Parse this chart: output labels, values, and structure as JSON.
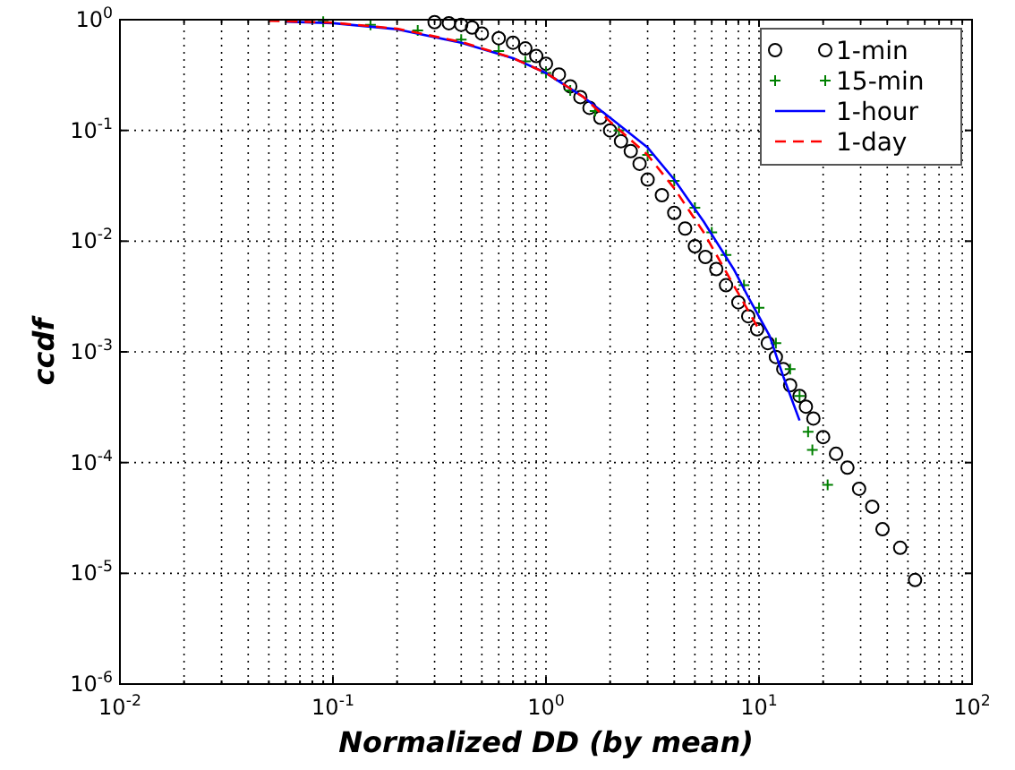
{
  "chart_data": {
    "type": "scatter",
    "xlabel": "Normalized DD (by mean)",
    "ylabel": "ccdf",
    "log": "xy",
    "grid": true,
    "legend": "top right",
    "xlim": [
      0.01,
      100
    ],
    "ylim": [
      1e-06,
      1
    ],
    "xticks": [
      {
        "value": 0.01,
        "label": "10$^{-2}$"
      },
      {
        "value": 0.02,
        "label": null
      },
      {
        "value": 0.03,
        "label": null
      },
      {
        "value": 0.04,
        "label": null
      },
      {
        "value": 0.05,
        "label": null
      },
      {
        "value": 0.06,
        "label": null
      },
      {
        "value": 0.07,
        "label": null
      },
      {
        "value": 0.08,
        "label": null
      },
      {
        "value": 0.09,
        "label": null
      },
      {
        "value": 0.1,
        "label": "10$^{-1}$"
      },
      {
        "value": 0.2,
        "label": null
      },
      {
        "value": 0.3,
        "label": null
      },
      {
        "value": 0.4,
        "label": null
      },
      {
        "value": 0.5,
        "label": null
      },
      {
        "value": 0.6,
        "label": null
      },
      {
        "value": 0.7,
        "label": null
      },
      {
        "value": 0.8,
        "label": null
      },
      {
        "value": 0.9,
        "label": null
      },
      {
        "value": 1,
        "label": "10$^{0}$"
      },
      {
        "value": 2,
        "label": null
      },
      {
        "value": 3,
        "label": null
      },
      {
        "value": 4,
        "label": null
      },
      {
        "value": 5,
        "label": null
      },
      {
        "value": 6,
        "label": null
      },
      {
        "value": 7,
        "label": null
      },
      {
        "value": 8,
        "label": null
      },
      {
        "value": 9,
        "label": null
      },
      {
        "value": 10,
        "label": "10$^{1}$"
      },
      {
        "value": 20,
        "label": null
      },
      {
        "value": 30,
        "label": null
      },
      {
        "value": 40,
        "label": null
      },
      {
        "value": 50,
        "label": null
      },
      {
        "value": 60,
        "label": null
      },
      {
        "value": 70,
        "label": null
      },
      {
        "value": 80,
        "label": null
      },
      {
        "value": 90,
        "label": null
      },
      {
        "value": 100,
        "label": "10$^{2}$"
      }
    ],
    "yticks": [
      {
        "value": 1e-06,
        "label": "10$^{-6}$"
      },
      {
        "value": 1e-05,
        "label": "10$^{-5}$"
      },
      {
        "value": 0.0001,
        "label": "10$^{-4}$"
      },
      {
        "value": 0.001,
        "label": "10$^{-3}$"
      },
      {
        "value": 0.01,
        "label": "10$^{-2}$"
      },
      {
        "value": 0.1,
        "label": "10$^{-1}$"
      },
      {
        "value": 1,
        "label": "10$^{0}$"
      }
    ],
    "series": [
      {
        "name": "1-min",
        "marker": "circle",
        "color": "#000000",
        "x": [
          0.3,
          0.35,
          0.4,
          0.45,
          0.5,
          0.6,
          0.7,
          0.8,
          0.9,
          1,
          1.15,
          1.3,
          1.45,
          1.6,
          1.8,
          2,
          2.25,
          2.5,
          2.75,
          3,
          3.5,
          4,
          4.5,
          5,
          5.6,
          6.3,
          7,
          8,
          8.9,
          9.8,
          11,
          12,
          13,
          14,
          15.5,
          16.6,
          18,
          20,
          23,
          26,
          29.5,
          34,
          38,
          46,
          54
        ],
        "values": [
          0.95,
          0.93,
          0.9,
          0.85,
          0.75,
          0.68,
          0.62,
          0.55,
          0.47,
          0.4,
          0.32,
          0.25,
          0.2,
          0.16,
          0.13,
          0.1,
          0.08,
          0.065,
          0.05,
          0.036,
          0.026,
          0.018,
          0.013,
          0.009,
          0.0072,
          0.0056,
          0.004,
          0.0028,
          0.0021,
          0.0016,
          0.0012,
          0.0009,
          0.0007,
          0.0005,
          0.0004,
          0.00032,
          0.00025,
          0.00017,
          0.00012,
          9e-05,
          5.8e-05,
          4e-05,
          2.5e-05,
          1.7e-05,
          8.7e-06
        ]
      },
      {
        "name": "15-min",
        "marker": "cross",
        "color": "#008000",
        "x": [
          0.09,
          0.15,
          0.25,
          0.4,
          0.6,
          0.8,
          1,
          1.3,
          1.7,
          2.2,
          3,
          4,
          5,
          6,
          7,
          8.5,
          10,
          12,
          14,
          15.5,
          17,
          17.8,
          21
        ],
        "values": [
          0.96,
          0.9,
          0.8,
          0.66,
          0.52,
          0.42,
          0.33,
          0.23,
          0.15,
          0.1,
          0.06,
          0.035,
          0.02,
          0.012,
          0.0075,
          0.004,
          0.0025,
          0.0012,
          0.0007,
          0.0004,
          0.00019,
          0.00013,
          6.3e-05
        ]
      },
      {
        "name": "1-hour",
        "type": "line",
        "marker": "none",
        "line_style": "solid",
        "color": "#0000ff",
        "x": [
          0.06,
          0.1,
          0.2,
          0.4,
          0.7,
          1,
          1.5,
          2,
          3,
          4,
          5.5,
          7.6,
          9,
          11.2,
          13,
          15.5
        ],
        "values": [
          0.96,
          0.93,
          0.82,
          0.62,
          0.45,
          0.33,
          0.2,
          0.13,
          0.07,
          0.036,
          0.015,
          0.0056,
          0.003,
          0.0014,
          0.0006,
          0.00024
        ]
      },
      {
        "name": "1-day",
        "type": "line",
        "marker": "none",
        "line_style": "dashed",
        "color": "#ff0000",
        "x": [
          0.05,
          0.1,
          0.2,
          0.4,
          0.7,
          1,
          1.5,
          2,
          3,
          4,
          5.5,
          7.6,
          9.8
        ],
        "values": [
          0.98,
          0.94,
          0.83,
          0.63,
          0.45,
          0.33,
          0.2,
          0.12,
          0.06,
          0.03,
          0.012,
          0.004,
          0.0017
        ]
      }
    ]
  }
}
